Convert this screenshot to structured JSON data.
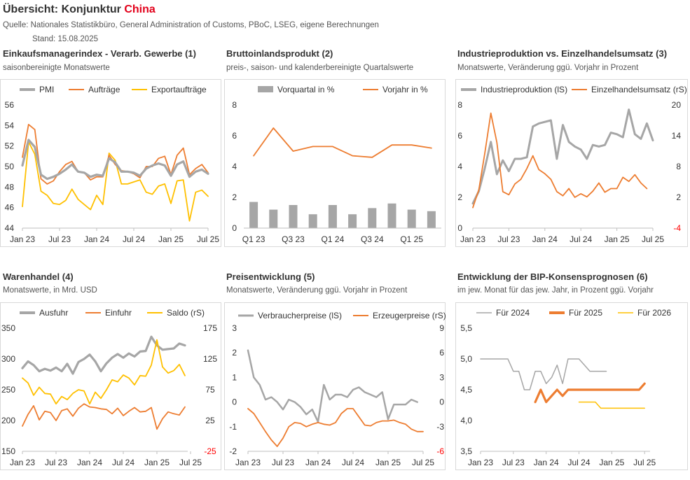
{
  "header": {
    "title_main": "Übersicht: Konjunktur",
    "title_accent": "China",
    "source": "Quelle: Nationales Statistikbüro, General Administration of Customs, PBoC, LSEG, eigene Berechnungen",
    "stand": "Stand:  15.08.2025"
  },
  "colors": {
    "grey": "#a6a6a6",
    "orange": "#ed7d31",
    "yellow": "#ffc000",
    "red": "#ff0000",
    "accent": "#e2001a"
  },
  "panels": [
    {
      "title": "Einkaufsmanagerindex - Verarb. Gewerbe (1)",
      "subtitle": "saisonbereinigte Monatswerte"
    },
    {
      "title": "Bruttoinlandsprodukt (2)",
      "subtitle": "preis-, saison- und kalenderbereinigte Quartalswerte"
    },
    {
      "title": "Industrieproduktion vs. Einzelhandelsumsatz (3)",
      "subtitle": "Monatswerte, Veränderung ggü. Vorjahr in Prozent"
    },
    {
      "title": "Warenhandel (4)",
      "subtitle": "Monatswerte, in Mrd. USD"
    },
    {
      "title": "Preisentwicklung (5)",
      "subtitle": "Monatswerte, Veränderung ggü. Vorjahr in Prozent"
    },
    {
      "title": "Entwicklung der BIP-Konsensprognosen (6)",
      "subtitle": "im jew. Monat für das jew. Jahr, in Prozent ggü. Vorjahr"
    }
  ],
  "chart_data": [
    {
      "type": "line",
      "x_start": "Jan 23",
      "x_ticks": [
        "Jan 23",
        "Jul 23",
        "Jan 24",
        "Jul 24",
        "Jan 25",
        "Jul 25"
      ],
      "ylim": [
        44,
        56
      ],
      "y_ticks": [
        "56",
        "54",
        "52",
        "50",
        "48",
        "46",
        "44"
      ],
      "series": [
        {
          "name": "PMI",
          "color": "grey",
          "width": 3.2,
          "values": [
            50.1,
            52.6,
            51.9,
            49.2,
            48.8,
            49.0,
            49.3,
            49.7,
            50.2,
            49.5,
            49.4,
            49.0,
            49.2,
            49.1,
            50.8,
            50.4,
            49.5,
            49.5,
            49.4,
            49.1,
            49.8,
            50.1,
            50.3,
            50.1,
            49.1,
            50.2,
            50.5,
            49.0,
            49.5,
            49.7,
            49.3
          ]
        },
        {
          "name": "Aufträge",
          "color": "orange",
          "width": 1.8,
          "values": [
            50.9,
            54.1,
            53.6,
            48.8,
            48.3,
            48.6,
            49.5,
            50.2,
            50.5,
            49.5,
            49.4,
            48.7,
            49.0,
            49.0,
            51.1,
            50.2,
            49.6,
            49.5,
            49.3,
            48.9,
            50.0,
            50.0,
            50.8,
            51.0,
            49.2,
            51.1,
            51.8,
            49.2,
            49.8,
            50.2,
            49.4
          ]
        },
        {
          "name": "Exportaufträge",
          "color": "yellow",
          "width": 1.8,
          "values": [
            46.1,
            52.4,
            51.2,
            47.6,
            47.2,
            46.4,
            46.3,
            46.7,
            47.8,
            46.8,
            46.3,
            45.8,
            47.2,
            46.3,
            51.3,
            50.6,
            48.3,
            48.3,
            48.5,
            48.7,
            47.5,
            47.3,
            48.1,
            48.3,
            46.4,
            48.6,
            48.7,
            44.7,
            47.5,
            47.7,
            47.1
          ]
        }
      ]
    },
    {
      "type": "bar",
      "categories": [
        "Q1 23",
        "Q2 23",
        "Q3 23",
        "Q4 23",
        "Q1 24",
        "Q2 24",
        "Q3 24",
        "Q4 24",
        "Q1 25",
        "Q2 25"
      ],
      "x_tick_labels": [
        "Q1 23",
        "Q3 23",
        "Q1 24",
        "Q3 24",
        "Q1 25"
      ],
      "ylim": [
        0,
        8
      ],
      "y_ticks": [
        "8",
        "6",
        "4",
        "2",
        "0"
      ],
      "series": [
        {
          "name": "Vorquartal in %",
          "color": "grey",
          "type": "bar",
          "values": [
            1.7,
            1.2,
            1.5,
            0.9,
            1.5,
            0.9,
            1.3,
            1.6,
            1.2,
            1.1
          ]
        },
        {
          "name": "Vorjahr in %",
          "color": "orange",
          "type": "line",
          "values": [
            4.7,
            6.5,
            5.0,
            5.3,
            5.3,
            4.7,
            4.6,
            5.4,
            5.4,
            5.2
          ]
        }
      ]
    },
    {
      "type": "line",
      "x_start": "Jan 23",
      "x_ticks": [
        "Jan 23",
        "Jul 23",
        "Jan 24",
        "Jul 24",
        "Jan 25",
        "Jul 25"
      ],
      "ylim_left": [
        0,
        8
      ],
      "ylim_right": [
        -4,
        20
      ],
      "y_ticks_left": [
        "8",
        "6",
        "4",
        "2",
        "0"
      ],
      "y_ticks_right": [
        "20",
        "14",
        "8",
        "2",
        "-4"
      ],
      "series": [
        {
          "name": "Industrieproduktion (lS)",
          "color": "grey",
          "axis": "left",
          "width": 3,
          "values": [
            1.6,
            2.4,
            3.9,
            5.6,
            3.5,
            4.4,
            3.7,
            4.5,
            4.5,
            4.6,
            6.6,
            6.8,
            6.9,
            7.0,
            4.5,
            6.7,
            5.6,
            5.3,
            5.1,
            4.5,
            5.4,
            5.3,
            5.4,
            6.2,
            6.1,
            5.9,
            7.7,
            6.1,
            5.8,
            6.8,
            5.7
          ]
        },
        {
          "name": "Einzelhandelsumsatz (rS)",
          "color": "orange",
          "axis": "right",
          "width": 1.8,
          "values": [
            0.0,
            3.5,
            10.6,
            18.4,
            12.7,
            3.1,
            2.5,
            4.6,
            5.5,
            7.6,
            10.1,
            7.4,
            6.6,
            5.5,
            3.1,
            2.3,
            3.7,
            2.0,
            2.7,
            2.1,
            3.2,
            4.8,
            3.0,
            3.7,
            3.7,
            5.9,
            5.1,
            6.4,
            4.8,
            3.7
          ]
        }
      ]
    },
    {
      "type": "line",
      "x_start": "Jan 23",
      "x_ticks": [
        "Jan 23",
        "Jul 23",
        "Jan 24",
        "Jul 24",
        "Jan 25",
        "Jul 25"
      ],
      "ylim_left": [
        150,
        350
      ],
      "ylim_right": [
        -25,
        175
      ],
      "y_ticks_left": [
        "350",
        "300",
        "250",
        "200",
        "150"
      ],
      "y_ticks_right": [
        "175",
        "125",
        "75",
        "25",
        "-25"
      ],
      "series": [
        {
          "name": "Ausfuhr",
          "color": "grey",
          "axis": "left",
          "width": 3.2,
          "values": [
            285,
            296,
            290,
            280,
            284,
            281,
            286,
            280,
            292,
            276,
            295,
            300,
            307,
            296,
            280,
            293,
            302,
            308,
            302,
            309,
            304,
            312,
            313,
            336,
            322,
            315,
            316,
            317,
            325,
            322
          ]
        },
        {
          "name": "Einfuhr",
          "color": "orange",
          "axis": "left",
          "width": 1.8,
          "values": [
            191,
            210,
            224,
            201,
            215,
            213,
            200,
            216,
            219,
            207,
            220,
            227,
            222,
            221,
            219,
            218,
            211,
            220,
            208,
            215,
            221,
            214,
            215,
            221,
            186,
            203,
            214,
            211,
            209,
            222
          ]
        },
        {
          "name": "Saldo (rS)",
          "color": "yellow",
          "axis": "right",
          "width": 1.8,
          "values": [
            94,
            86,
            66,
            79,
            69,
            68,
            52,
            64,
            59,
            69,
            75,
            73,
            52,
            71,
            61,
            75,
            91,
            88,
            99,
            94,
            83,
            98,
            97,
            115,
            156,
            112,
            102,
            106,
            116,
            98
          ]
        }
      ]
    },
    {
      "type": "line",
      "x_start": "Jan 23",
      "x_ticks": [
        "Jan 23",
        "Jul 23",
        "Jan 24",
        "Jul 24",
        "Jan 25",
        "Jul 25"
      ],
      "ylim_left": [
        -2,
        3
      ],
      "ylim_right": [
        -6,
        9
      ],
      "y_ticks_left": [
        "3",
        "2",
        "1",
        "0",
        "-1",
        "-2"
      ],
      "y_ticks_right": [
        "9",
        "6",
        "3",
        "0",
        "-3",
        "-6"
      ],
      "series": [
        {
          "name": "Verbraucherpreise (lS)",
          "color": "grey",
          "axis": "left",
          "width": 2.5,
          "values": [
            2.1,
            1.0,
            0.7,
            0.1,
            0.2,
            0.0,
            -0.3,
            0.1,
            0.0,
            -0.2,
            -0.5,
            -0.3,
            -0.8,
            0.7,
            0.1,
            0.3,
            0.3,
            0.2,
            0.5,
            0.6,
            0.4,
            0.3,
            0.2,
            0.4,
            -0.7,
            -0.1,
            -0.1,
            -0.1,
            0.1,
            0.0
          ]
        },
        {
          "name": "Erzeugerpreise (rS)",
          "color": "orange",
          "axis": "right",
          "width": 1.8,
          "values": [
            -0.8,
            -1.4,
            -2.5,
            -3.6,
            -4.6,
            -5.4,
            -4.4,
            -3.0,
            -2.5,
            -2.6,
            -3.0,
            -2.7,
            -2.5,
            -2.7,
            -2.8,
            -2.5,
            -1.4,
            -0.8,
            -0.8,
            -1.8,
            -2.8,
            -2.9,
            -2.5,
            -2.3,
            -2.3,
            -2.2,
            -2.5,
            -2.7,
            -3.3,
            -3.6,
            -3.6
          ]
        }
      ]
    },
    {
      "type": "line",
      "x_start": "Jan 23",
      "x_ticks": [
        "Jan 23",
        "Jul 23",
        "Jan 24",
        "Jul 24",
        "Jan 25",
        "Jul 25"
      ],
      "ylim": [
        3.5,
        5.5
      ],
      "y_ticks": [
        "5,5",
        "5,0",
        "4,5",
        "4,0",
        "3,5"
      ],
      "series": [
        {
          "name": "Für 2024",
          "color": "grey",
          "width": 1.5,
          "start": 0,
          "values": [
            5.0,
            5.0,
            5.0,
            5.0,
            5.0,
            5.0,
            4.8,
            4.8,
            4.5,
            4.5,
            4.8,
            4.8,
            4.6,
            4.7,
            4.9,
            4.6,
            5.0,
            5.0,
            5.0,
            4.9,
            4.8,
            4.8,
            4.8,
            4.8
          ]
        },
        {
          "name": "Für 2025",
          "color": "orange",
          "width": 3.2,
          "start": 10,
          "values": [
            4.3,
            4.5,
            4.3,
            4.4,
            4.5,
            4.4,
            4.5,
            4.5,
            4.5,
            4.5,
            4.5,
            4.5,
            4.5,
            4.5,
            4.5,
            4.5,
            4.5,
            4.5,
            4.5,
            4.5,
            4.6
          ]
        },
        {
          "name": "Für 2026",
          "color": "yellow",
          "width": 1.5,
          "start": 18,
          "values": [
            4.3,
            4.3,
            4.3,
            4.3,
            4.2,
            4.2,
            4.2,
            4.2,
            4.2,
            4.2,
            4.2,
            4.2,
            4.2
          ]
        }
      ]
    }
  ]
}
